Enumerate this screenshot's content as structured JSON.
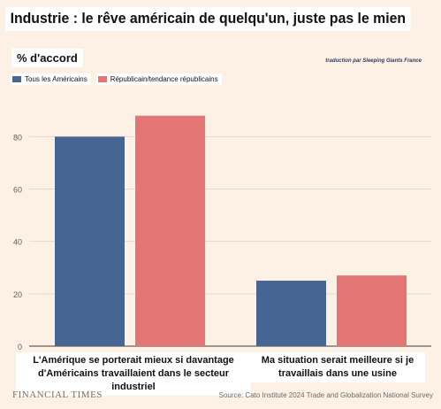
{
  "title": "Industrie : le rêve américain de quelqu'un, juste pas le mien",
  "subtitle": "% d'accord",
  "credit": "traduction par Sleeping Giants France",
  "legend": [
    {
      "label": "Tous les Américains",
      "color": "#466592"
    },
    {
      "label": "Républicain/tendance républicains",
      "color": "#e37575"
    }
  ],
  "footer": {
    "brand": "FINANCIAL TIMES",
    "source": "Source: Cato Institute 2024 Trade and Globalization National Survey"
  },
  "chart_data": {
    "type": "bar",
    "categories": [
      "L'Amérique se porterait mieux si davantage d'Américains travaillaient dans le secteur industriel",
      "Ma situation serait meilleure si je travaillais dans une usine"
    ],
    "series": [
      {
        "name": "Tous les Américains",
        "values": [
          80,
          25
        ],
        "color": "#466592"
      },
      {
        "name": "Républicain/tendance républicains",
        "values": [
          88,
          27
        ],
        "color": "#e37575"
      }
    ],
    "title": "Industrie : le rêve américain de quelqu'un, juste pas le mien",
    "ylabel": "% d'accord",
    "ylim": [
      0,
      95
    ],
    "yticks": [
      0,
      20,
      40,
      60,
      80
    ],
    "grid": true,
    "legend_position": "top-left"
  }
}
